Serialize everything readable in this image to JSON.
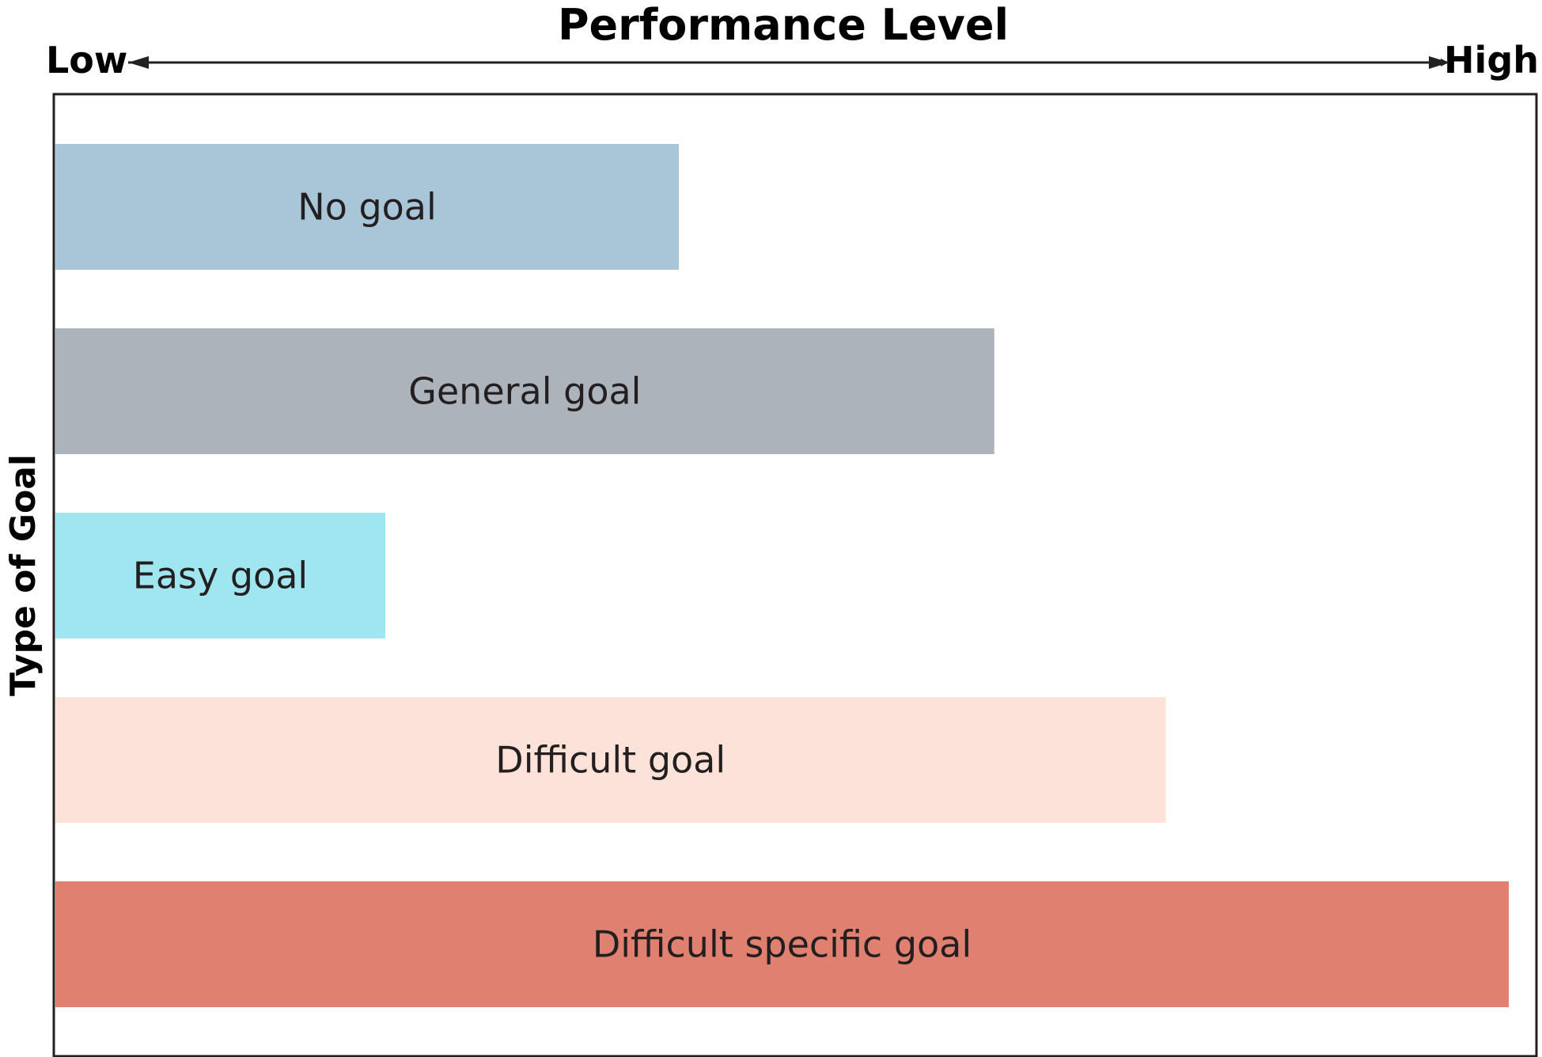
{
  "chart_data": {
    "type": "bar",
    "orientation": "horizontal",
    "title": "Performance Level",
    "xlabel": "Performance Level",
    "x_low_label": "Low",
    "x_high_label": "High",
    "ylabel": "Type of Goal",
    "xlim": [
      0,
      100
    ],
    "grid": false,
    "legend": "none",
    "categories": [
      "No goal",
      "General goal",
      "Easy goal",
      "Difficult goal",
      "Difficult specific goal"
    ],
    "values": [
      42.9,
      64.6,
      22.7,
      76.4,
      100
    ],
    "colors": [
      "#a8c6d8",
      "#adb3bb",
      "#a0e6f1",
      "#fde2da",
      "#e08070"
    ]
  }
}
